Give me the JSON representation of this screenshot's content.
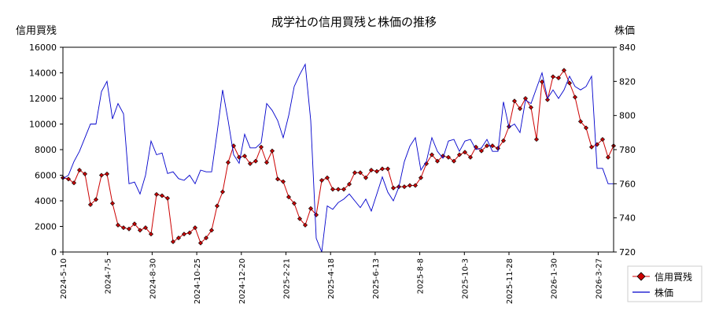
{
  "chart_data": {
    "type": "line",
    "title": "成学社の信用買残と株価の推移",
    "ylabel_left": "信用買残",
    "ylabel_right": "株価",
    "ylim_left": [
      0,
      16000
    ],
    "ylim_right": [
      720,
      840
    ],
    "yticks_left": [
      "0",
      "2000",
      "4000",
      "6000",
      "8000",
      "10000",
      "12000",
      "14000",
      "16000"
    ],
    "yticks_right": [
      "720",
      "740",
      "760",
      "780",
      "800",
      "820",
      "840"
    ],
    "xticks": [
      "2024-5-10",
      "2024-7-5",
      "2024-8-30",
      "2024-10-25",
      "2024-12-20",
      "2025-2-21",
      "2025-4-18",
      "2025-6-13",
      "2025-8-8",
      "2025-10-3",
      "2025-11-28",
      "2026-1-30",
      "2026-3-27"
    ],
    "grid": false,
    "legend_position": "bottom-right",
    "series": [
      {
        "name": "信用買残",
        "color": "#cc0000",
        "marker": "diamond",
        "axis": "left",
        "values": [
          5800,
          5700,
          5400,
          6400,
          6100,
          3700,
          4100,
          6000,
          6100,
          3800,
          2100,
          1900,
          1800,
          2200,
          1700,
          1900,
          1400,
          4500,
          4400,
          4200,
          800,
          1100,
          1400,
          1500,
          1900,
          700,
          1100,
          1700,
          3600,
          4700,
          7000,
          8300,
          7400,
          7500,
          6900,
          7100,
          8200,
          7000,
          7900,
          5700,
          5500,
          4300,
          3800,
          2600,
          2100,
          3400,
          2900,
          5600,
          5800,
          4900,
          4900,
          4900,
          5300,
          6200,
          6200,
          5800,
          6400,
          6300,
          6500,
          6500,
          5000,
          5100,
          5100,
          5200,
          5200,
          5800,
          6900,
          7600,
          7100,
          7500,
          7400,
          7100,
          7600,
          7800,
          7400,
          8200,
          7900,
          8300,
          8300,
          8100,
          8700,
          9800,
          11800,
          11200,
          12000,
          11300,
          8800,
          13300,
          11900,
          13700,
          13600,
          14200,
          13200,
          12100,
          10200,
          9700,
          8200,
          8400,
          8800,
          7400,
          8300
        ]
      },
      {
        "name": "株価",
        "color": "#0000cc",
        "axis": "right",
        "values": [
          763,
          765,
          773,
          779,
          787,
          795,
          795,
          814,
          820,
          798,
          807,
          801,
          760,
          761,
          754,
          765,
          785,
          777,
          778,
          766,
          767,
          763,
          762,
          765,
          760,
          768,
          767,
          767,
          790,
          815,
          797,
          777,
          772,
          789,
          781,
          781,
          784,
          807,
          803,
          797,
          787,
          800,
          817,
          824,
          830,
          797,
          728,
          720,
          747,
          745,
          749,
          751,
          754,
          750,
          746,
          751,
          744,
          754,
          764,
          755,
          750,
          758,
          773,
          782,
          787,
          768,
          773,
          787,
          779,
          775,
          785,
          786,
          779,
          785,
          786,
          780,
          781,
          786,
          779,
          779,
          808,
          793,
          795,
          790,
          809,
          807,
          816,
          825,
          810,
          815,
          810,
          815,
          823,
          817,
          815,
          817,
          823,
          769,
          769,
          760,
          760
        ]
      }
    ]
  }
}
